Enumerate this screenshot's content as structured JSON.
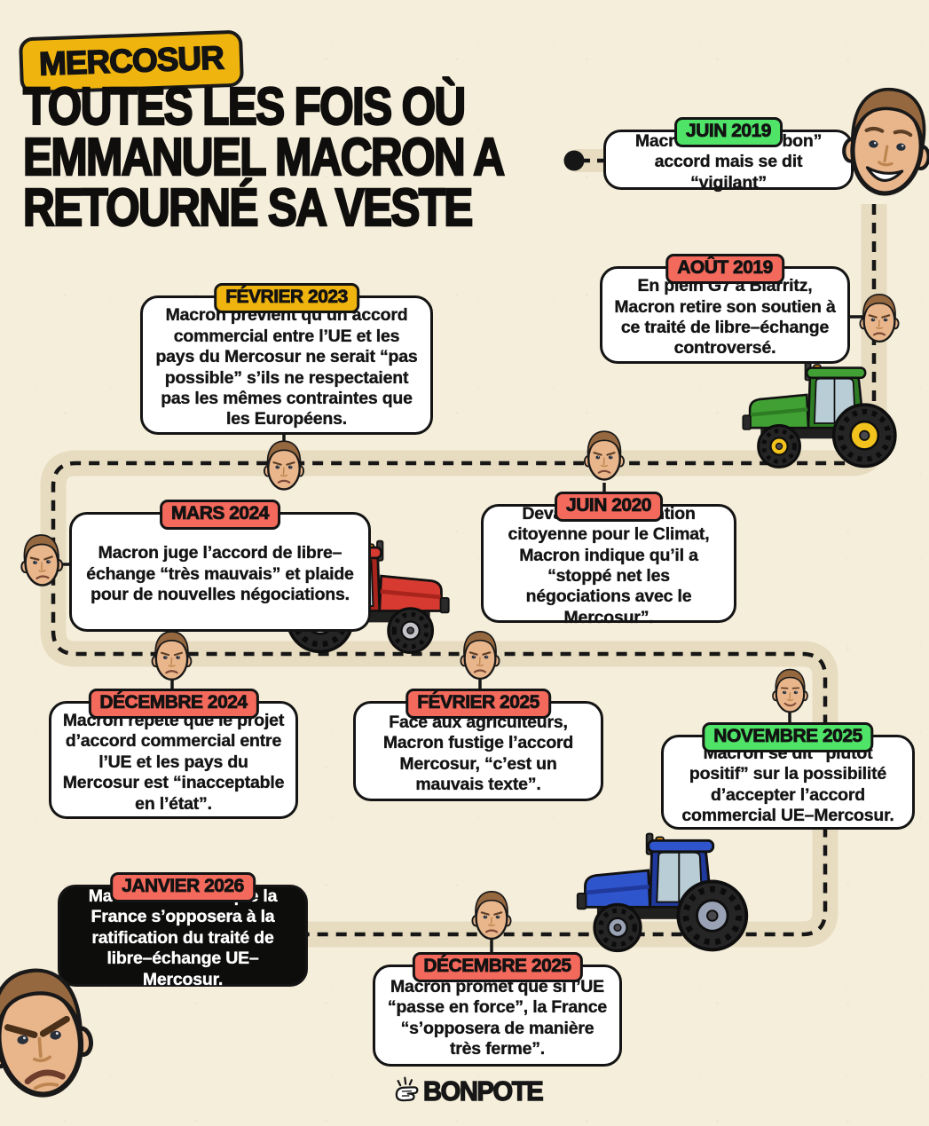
{
  "header": {
    "tag": "MERCOSUR",
    "title_lines": [
      "TOUTES LES FOIS OÙ",
      "EMMANUEL MACRON A",
      "RETOURNÉ SA VESTE"
    ]
  },
  "footer": {
    "brand": "BONPOTE"
  },
  "colors": {
    "background": "#f5eedb",
    "road_band": "#e7dcc0",
    "dash": "#161616",
    "box_bg": "#ffffff",
    "box_border": "#141414",
    "dark_box_bg": "#0d0d0c",
    "dark_box_text": "#ffffff",
    "badge_green": "#4fe468",
    "badge_red": "#f3695c",
    "badge_yellow": "#f0b40e",
    "text": "#141414",
    "tractor_green": "#41a034",
    "tractor_red": "#d63a30",
    "tractor_blue": "#2f55cc"
  },
  "icons": {
    "face": "macron-face-icon",
    "tractor": "tractor-icon",
    "timeline": "dashed-timeline-path",
    "start": "timeline-start-dot",
    "brand_hand": "finger-snap-icon"
  },
  "events": [
    {
      "date": "JUIN 2019",
      "badge_color": "green",
      "text": "Macron salue un “bon” accord mais se dit “vigilant”"
    },
    {
      "date": "AOÛT 2019",
      "badge_color": "red",
      "text": "En plein G7 à Biarritz, Macron retire son soutien à ce traité de libre–échange controversé."
    },
    {
      "date": "JUIN 2020",
      "badge_color": "red",
      "text": "Devant la Convention citoyenne pour le Climat, Macron indique qu’il a “stoppé net les négociations avec le Mercosur”."
    },
    {
      "date": "FÉVRIER 2023",
      "badge_color": "yellow",
      "text": "Macron prévient qu’un accord commercial entre l’UE et les pays du Mercosur ne serait “pas possible” s’ils ne respectaient pas les mêmes contraintes que les Européens."
    },
    {
      "date": "MARS 2024",
      "badge_color": "red",
      "text": "Macron juge l’accord de libre–échange “très mauvais” et plaide pour de nouvelles négociations."
    },
    {
      "date": "DÉCEMBRE 2024",
      "badge_color": "red",
      "text": "Macron répète que le projet d’accord commercial entre l’UE et les pays du Mercosur est “inacceptable en l’état”."
    },
    {
      "date": "FÉVRIER 2025",
      "badge_color": "red",
      "text": "Face aux agriculteurs, Macron fustige l’accord Mercosur, “c’est un mauvais texte”."
    },
    {
      "date": "NOVEMBRE 2025",
      "badge_color": "green",
      "text": "Macron se dit “plutôt positif” sur la possibilité d’accepter l’accord commercial UE–Mercosur."
    },
    {
      "date": "DÉCEMBRE 2025",
      "badge_color": "red",
      "text": "Macron promet que si l’UE “passe en force”, la France “s’opposera de manière très ferme”."
    },
    {
      "date": "JANVIER 2026",
      "badge_color": "red",
      "theme": "dark",
      "text": "Macron annonce que la France s’opposera à la ratification du traité de libre–échange UE–Mercosur."
    }
  ]
}
